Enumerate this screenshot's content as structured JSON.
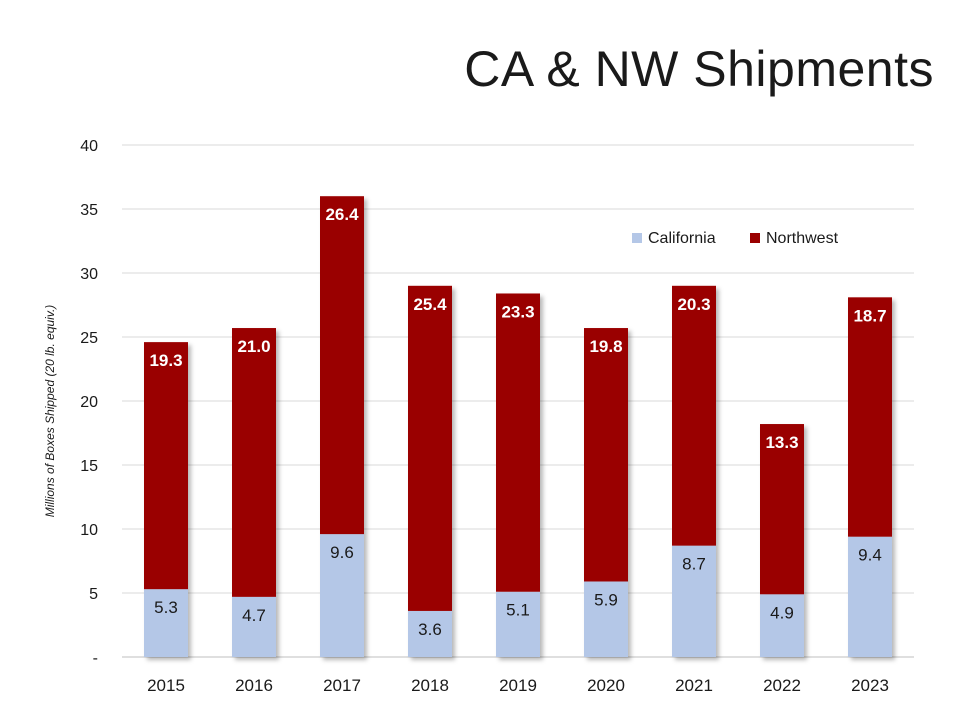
{
  "title": "CA & NW Shipments",
  "chart_data": {
    "type": "bar",
    "stacked": true,
    "categories": [
      "2015",
      "2016",
      "2017",
      "2018",
      "2019",
      "2020",
      "2021",
      "2022",
      "2023"
    ],
    "series": [
      {
        "name": "California",
        "color": "#b4c7e7",
        "values": [
          5.3,
          4.7,
          9.6,
          3.6,
          5.1,
          5.9,
          8.7,
          4.9,
          9.4
        ]
      },
      {
        "name": "Northwest",
        "color": "#9a0000",
        "values": [
          19.3,
          21.0,
          26.4,
          25.4,
          23.3,
          19.8,
          20.3,
          13.3,
          18.7
        ]
      }
    ],
    "ylabel": "Millions of Boxes Shipped (20 lb. equiv.)",
    "ylim": [
      0,
      40
    ],
    "yticks": [
      {
        "value": 0,
        "label": "-"
      },
      {
        "value": 5,
        "label": "5"
      },
      {
        "value": 10,
        "label": "10"
      },
      {
        "value": 15,
        "label": "15"
      },
      {
        "value": 20,
        "label": "20"
      },
      {
        "value": 25,
        "label": "25"
      },
      {
        "value": 30,
        "label": "30"
      },
      {
        "value": 35,
        "label": "35"
      },
      {
        "value": 40,
        "label": "40"
      }
    ],
    "grid": true,
    "legend": "top-right"
  }
}
